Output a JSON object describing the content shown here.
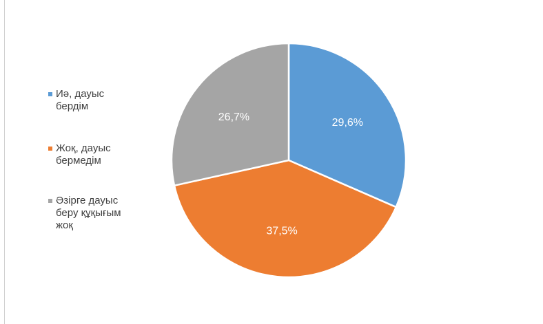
{
  "chart_data": {
    "type": "pie",
    "categories": [
      "Иә, дауыс бердім",
      "Жоқ, дауыс бермедім",
      "Әзірге дауыс беру құқығым жоқ"
    ],
    "values": [
      29.6,
      37.5,
      26.7
    ],
    "value_labels": [
      "29,6%",
      "37,5%",
      "26,7%"
    ],
    "colors": [
      "#5B9BD5",
      "#ED7D31",
      "#A5A5A5"
    ],
    "legend_position": "left"
  },
  "legend": {
    "items": [
      {
        "label": "Иә, дауыс бердім",
        "color": "#5B9BD5"
      },
      {
        "label": "Жоқ, дауыс бермедім",
        "color": "#ED7D31"
      },
      {
        "label": "Әзірге дауыс беру құқығым жоқ",
        "color": "#A5A5A5"
      }
    ]
  }
}
